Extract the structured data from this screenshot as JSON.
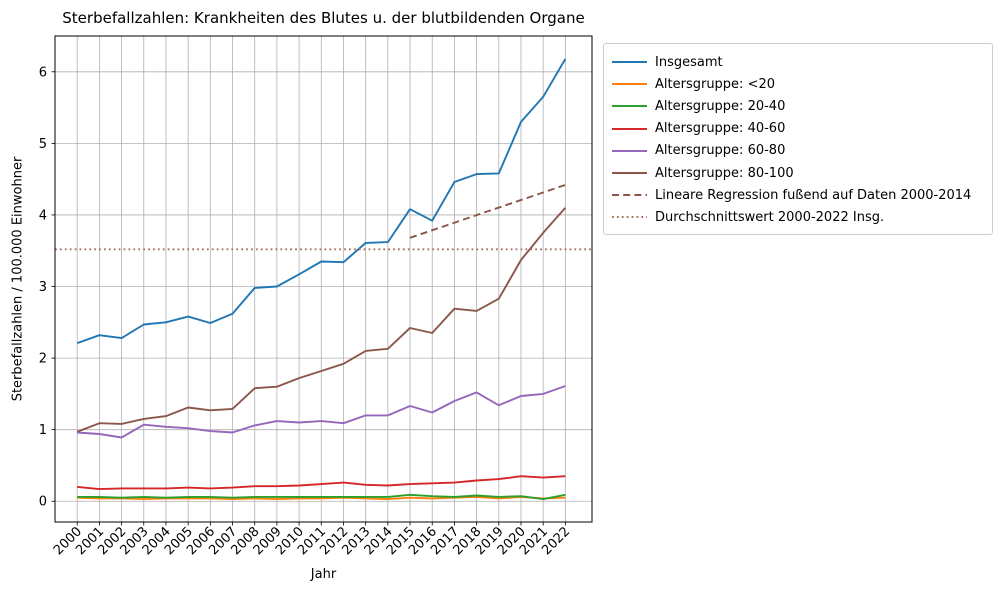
{
  "chart_data": {
    "type": "line",
    "title": "Sterbefallzahlen: Krankheiten des Blutes u. der blutbildenden Organe",
    "xlabel": "Jahr",
    "ylabel": "Sterbefallzahlen / 100.000 Einwohner",
    "x": [
      2000,
      2001,
      2002,
      2003,
      2004,
      2005,
      2006,
      2007,
      2008,
      2009,
      2010,
      2011,
      2012,
      2013,
      2014,
      2015,
      2016,
      2017,
      2018,
      2019,
      2020,
      2021,
      2022
    ],
    "yticks": [
      0,
      1,
      2,
      3,
      4,
      5,
      6
    ],
    "xlim": [
      1999.0,
      2023.2
    ],
    "ylim": [
      -0.29,
      6.5
    ],
    "grid": true,
    "grid_color": "#b0b0b0",
    "legend_position": "outside-upper-right",
    "series": [
      {
        "name": "Insgesamt",
        "color": "#1f77b4",
        "style": "solid",
        "values": [
          2.21,
          2.32,
          2.28,
          2.47,
          2.5,
          2.58,
          2.49,
          2.62,
          2.98,
          3.0,
          3.17,
          3.35,
          3.34,
          3.61,
          3.62,
          4.08,
          3.92,
          4.46,
          4.57,
          4.58,
          5.3,
          5.65,
          6.18
        ]
      },
      {
        "name": "Altersgruppe: <20",
        "color": "#ff7f0e",
        "style": "solid",
        "values": [
          0.05,
          0.04,
          0.04,
          0.03,
          0.04,
          0.04,
          0.04,
          0.03,
          0.04,
          0.03,
          0.04,
          0.04,
          0.05,
          0.04,
          0.03,
          0.05,
          0.04,
          0.05,
          0.06,
          0.04,
          0.06,
          0.04,
          0.05
        ]
      },
      {
        "name": "Altersgruppe: 20-40",
        "color": "#2ca02c",
        "style": "solid",
        "values": [
          0.06,
          0.06,
          0.05,
          0.06,
          0.05,
          0.06,
          0.06,
          0.05,
          0.06,
          0.06,
          0.06,
          0.06,
          0.06,
          0.06,
          0.06,
          0.09,
          0.07,
          0.06,
          0.08,
          0.06,
          0.07,
          0.03,
          0.09
        ]
      },
      {
        "name": "Altersgruppe: 40-60",
        "color": "#d62728",
        "style": "solid",
        "values": [
          0.2,
          0.17,
          0.18,
          0.18,
          0.18,
          0.19,
          0.18,
          0.19,
          0.21,
          0.21,
          0.22,
          0.24,
          0.26,
          0.23,
          0.22,
          0.24,
          0.25,
          0.26,
          0.29,
          0.31,
          0.35,
          0.33,
          0.35
        ]
      },
      {
        "name": "Altersgruppe: 60-80",
        "color": "#9467bd",
        "style": "solid",
        "values": [
          0.96,
          0.94,
          0.89,
          1.07,
          1.04,
          1.02,
          0.98,
          0.96,
          1.06,
          1.12,
          1.1,
          1.12,
          1.09,
          1.2,
          1.2,
          1.33,
          1.24,
          1.4,
          1.52,
          1.34,
          1.47,
          1.5,
          1.61
        ]
      },
      {
        "name": "Altersgruppe: 80-100",
        "color": "#8c564b",
        "style": "solid",
        "values": [
          0.97,
          1.09,
          1.08,
          1.15,
          1.19,
          1.31,
          1.27,
          1.29,
          1.58,
          1.6,
          1.72,
          1.82,
          1.92,
          2.1,
          2.13,
          2.42,
          2.35,
          2.69,
          2.66,
          2.83,
          3.37,
          3.75,
          4.1
        ]
      },
      {
        "name": "Lineare Regression fußend auf Daten 2000-2014",
        "color": "#8c564b",
        "style": "dashed",
        "x": [
          2015,
          2022
        ],
        "values": [
          3.68,
          4.42
        ]
      },
      {
        "name": "Durchschnittswert 2000-2022 Insg.",
        "color": "#a8705f",
        "style": "dotted",
        "x": [
          1999.0,
          2023.2
        ],
        "values": [
          3.52,
          3.52
        ]
      }
    ]
  }
}
